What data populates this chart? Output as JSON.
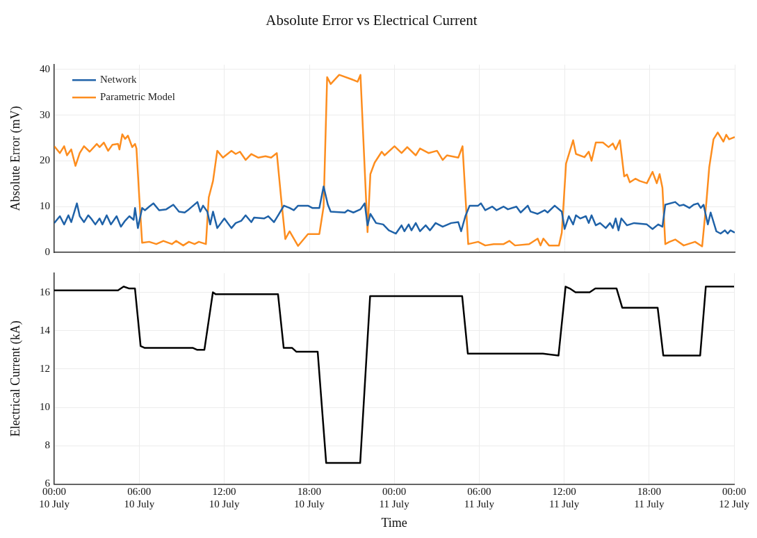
{
  "chart_data": [
    {
      "type": "line",
      "title": "Absolute Error vs Electrical Current",
      "ylabel": "Absolute Error (mV)",
      "xlim": [
        "--07-10T00:00",
        "--07-12T00:00"
      ],
      "xticks": [
        "--07-10T00:00",
        "--07-10T06:00",
        "--07-10T12:00",
        "--07-10T18:00",
        "--07-11T00:00",
        "--07-11T06:00",
        "--07-11T12:00",
        "--07-11T18:00",
        "--07-12T00:00"
      ],
      "ylim": [
        0,
        41
      ],
      "yticks": [
        0,
        10,
        20,
        30,
        40
      ],
      "grid": true,
      "legend": "top left",
      "tick_labels": "y",
      "series": [
        {
          "name": "Network",
          "color": "#1f62a8",
          "x": [
            "--07-10T00:00",
            "--07-10T00:24",
            "--07-10T00:42",
            "--07-10T01:00",
            "--07-10T01:12",
            "--07-10T01:36",
            "--07-10T01:48",
            "--07-10T02:06",
            "--07-10T02:24",
            "--07-10T02:36",
            "--07-10T02:54",
            "--07-10T03:12",
            "--07-10T03:24",
            "--07-10T03:42",
            "--07-10T04:00",
            "--07-10T04:24",
            "--07-10T04:42",
            "--07-10T05:00",
            "--07-10T05:18",
            "--07-10T05:36",
            "--07-10T05:42",
            "--07-10T05:54",
            "--07-10T06:12",
            "--07-10T06:24",
            "--07-10T06:42",
            "--07-10T07:00",
            "--07-10T07:24",
            "--07-10T07:54",
            "--07-10T08:24",
            "--07-10T08:48",
            "--07-10T09:12",
            "--07-10T09:30",
            "--07-10T10:06",
            "--07-10T10:18",
            "--07-10T10:30",
            "--07-10T10:48",
            "--07-10T11:00",
            "--07-10T11:12",
            "--07-10T11:30",
            "--07-10T12:00",
            "--07-10T12:30",
            "--07-10T12:48",
            "--07-10T13:12",
            "--07-10T13:30",
            "--07-10T13:54",
            "--07-10T14:06",
            "--07-10T14:48",
            "--07-10T15:06",
            "--07-10T15:30",
            "--07-10T15:48",
            "--07-10T16:12",
            "--07-10T16:36",
            "--07-10T16:54",
            "--07-10T17:12",
            "--07-10T17:54",
            "--07-10T18:12",
            "--07-10T18:42",
            "--07-10T19:00",
            "--07-10T19:18",
            "--07-10T19:30",
            "--07-10T20:30",
            "--07-10T20:42",
            "--07-10T21:06",
            "--07-10T21:36",
            "--07-10T21:54",
            "--07-10T22:06",
            "--07-10T22:18",
            "--07-10T22:42",
            "--07-10T23:12",
            "--07-10T23:36",
            "--07-11T00:06",
            "--07-11T00:30",
            "--07-11T00:42",
            "--07-11T01:00",
            "--07-11T01:12",
            "--07-11T01:30",
            "--07-11T01:48",
            "--07-11T02:12",
            "--07-11T02:30",
            "--07-11T02:54",
            "--07-11T03:24",
            "--07-11T04:00",
            "--07-11T04:30",
            "--07-11T04:42",
            "--07-11T05:00",
            "--07-11T05:18",
            "--07-11T05:54",
            "--07-11T06:06",
            "--07-11T06:24",
            "--07-11T06:54",
            "--07-11T07:12",
            "--07-11T07:42",
            "--07-11T08:00",
            "--07-11T08:36",
            "--07-11T08:54",
            "--07-11T09:24",
            "--07-11T09:36",
            "--07-11T10:06",
            "--07-11T10:36",
            "--07-11T10:48",
            "--07-11T11:18",
            "--07-11T11:48",
            "--07-11T12:00",
            "--07-11T12:18",
            "--07-11T12:36",
            "--07-11T12:48",
            "--07-11T13:06",
            "--07-11T13:30",
            "--07-11T13:42",
            "--07-11T13:54",
            "--07-11T14:12",
            "--07-11T14:30",
            "--07-11T14:54",
            "--07-11T15:12",
            "--07-11T15:24",
            "--07-11T15:36",
            "--07-11T15:48",
            "--07-11T16:00",
            "--07-11T16:24",
            "--07-11T16:54",
            "--07-11T17:48",
            "--07-11T18:12",
            "--07-11T18:36",
            "--07-11T18:54",
            "--07-11T19:06",
            "--07-11T19:48",
            "--07-11T20:06",
            "--07-11T20:24",
            "--07-11T20:48",
            "--07-11T21:06",
            "--07-11T21:24",
            "--07-11T21:36",
            "--07-11T21:48",
            "--07-11T22:06",
            "--07-11T22:18",
            "--07-11T22:42",
            "--07-11T23:00",
            "--07-11T23:18",
            "--07-11T23:30",
            "--07-11T23:42",
            "--07-12T00:00"
          ],
          "values": [
            6.4,
            7.9,
            6.1,
            8.1,
            6.6,
            10.7,
            7.9,
            6.6,
            8.1,
            7.4,
            6.1,
            7.4,
            6.1,
            8.1,
            6.1,
            7.9,
            5.6,
            6.9,
            7.9,
            7.1,
            9.7,
            5.3,
            9.7,
            9.2,
            10,
            10.7,
            9.2,
            9.4,
            10.4,
            8.9,
            8.7,
            9.4,
            11,
            8.9,
            10.2,
            8.9,
            6.1,
            8.9,
            5.3,
            7.4,
            5.3,
            6.4,
            6.9,
            8.1,
            6.6,
            7.6,
            7.4,
            7.9,
            6.6,
            8.1,
            10.2,
            9.7,
            9.2,
            10.2,
            10.2,
            9.7,
            9.7,
            14.4,
            10.4,
            8.9,
            8.7,
            9.2,
            8.7,
            9.4,
            10.7,
            5.9,
            8.4,
            6.4,
            6.1,
            4.8,
            4.1,
            5.9,
            4.6,
            6.1,
            4.8,
            6.4,
            4.6,
            5.9,
            4.8,
            6.4,
            5.6,
            6.4,
            6.6,
            4.6,
            7.9,
            10.2,
            10.2,
            10.7,
            9.2,
            10,
            9.2,
            10,
            9.4,
            10,
            8.7,
            10.2,
            8.9,
            8.4,
            9.2,
            8.7,
            10.2,
            8.9,
            5.1,
            7.9,
            6.1,
            8.1,
            7.4,
            7.9,
            6.4,
            8.1,
            5.9,
            6.4,
            5.3,
            6.4,
            5.3,
            7.4,
            4.8,
            7.4,
            5.9,
            6.4,
            6.1,
            5.1,
            6.1,
            5.6,
            10.4,
            11,
            10.2,
            10.4,
            9.7,
            10.4,
            10.7,
            9.7,
            10.4,
            6.1,
            8.7,
            4.6,
            4.1,
            4.8,
            4.1,
            4.8,
            4.3
          ]
        },
        {
          "name": "Parametric Model",
          "color": "#fd8d1e",
          "x": [
            "--07-10T00:00",
            "--07-10T00:24",
            "--07-10T00:42",
            "--07-10T00:54",
            "--07-10T01:12",
            "--07-10T01:30",
            "--07-10T01:48",
            "--07-10T02:06",
            "--07-10T02:30",
            "--07-10T03:00",
            "--07-10T03:12",
            "--07-10T03:30",
            "--07-10T03:48",
            "--07-10T04:06",
            "--07-10T04:30",
            "--07-10T04:36",
            "--07-10T04:48",
            "--07-10T05:00",
            "--07-10T05:12",
            "--07-10T05:30",
            "--07-10T05:42",
            "--07-10T05:48",
            "--07-10T06:00",
            "--07-10T06:12",
            "--07-10T06:42",
            "--07-10T07:12",
            "--07-10T07:42",
            "--07-10T08:18",
            "--07-10T08:36",
            "--07-10T09:06",
            "--07-10T09:30",
            "--07-10T09:54",
            "--07-10T10:12",
            "--07-10T10:42",
            "--07-10T10:54",
            "--07-10T11:12",
            "--07-10T11:30",
            "--07-10T11:54",
            "--07-10T12:30",
            "--07-10T12:48",
            "--07-10T13:06",
            "--07-10T13:30",
            "--07-10T13:54",
            "--07-10T14:24",
            "--07-10T14:54",
            "--07-10T15:18",
            "--07-10T15:42",
            "--07-10T16:00",
            "--07-10T16:18",
            "--07-10T16:36",
            "--07-10T17:12",
            "--07-10T17:54",
            "--07-10T18:42",
            "--07-10T19:00",
            "--07-10T19:15",
            "--07-10T19:30",
            "--07-10T20:06",
            "--07-10T21:00",
            "--07-10T21:24",
            "--07-10T21:36",
            "--07-10T22:06",
            "--07-10T22:18",
            "--07-10T22:36",
            "--07-10T23:06",
            "--07-10T23:18",
            "--07-11T00:00",
            "--07-11T00:30",
            "--07-11T00:54",
            "--07-11T01:30",
            "--07-11T01:48",
            "--07-11T02:24",
            "--07-11T03:00",
            "--07-11T03:24",
            "--07-11T03:42",
            "--07-11T04:30",
            "--07-11T04:48",
            "--07-11T05:12",
            "--07-11T05:54",
            "--07-11T06:24",
            "--07-11T07:00",
            "--07-11T07:42",
            "--07-11T08:06",
            "--07-11T08:30",
            "--07-11T09:30",
            "--07-11T10:06",
            "--07-11T10:18",
            "--07-11T10:30",
            "--07-11T10:54",
            "--07-11T11:36",
            "--07-11T11:48",
            "--07-11T12:06",
            "--07-11T12:36",
            "--07-11T12:48",
            "--07-11T13:24",
            "--07-11T13:42",
            "--07-11T13:54",
            "--07-11T14:12",
            "--07-11T14:42",
            "--07-11T15:06",
            "--07-11T15:24",
            "--07-11T15:36",
            "--07-11T15:54",
            "--07-11T16:12",
            "--07-11T16:24",
            "--07-11T16:36",
            "--07-11T17:00",
            "--07-11T17:18",
            "--07-11T17:48",
            "--07-11T18:12",
            "--07-11T18:30",
            "--07-11T18:42",
            "--07-11T18:54",
            "--07-11T19:06",
            "--07-11T19:24",
            "--07-11T19:48",
            "--07-11T20:24",
            "--07-11T21:12",
            "--07-11T21:42",
            "--07-11T22:00",
            "--07-11T22:12",
            "--07-11T22:30",
            "--07-11T22:48",
            "--07-11T23:12",
            "--07-11T23:24",
            "--07-11T23:36",
            "--07-12T00:00"
          ],
          "values": [
            23.2,
            21.7,
            23.2,
            21.2,
            22.5,
            18.9,
            21.7,
            23.2,
            22,
            23.7,
            23,
            24,
            22.2,
            23.5,
            23.7,
            22.5,
            25.8,
            24.8,
            25.5,
            23,
            23.7,
            22.7,
            12,
            2.1,
            2.3,
            1.8,
            2.5,
            1.8,
            2.5,
            1.5,
            2.3,
            1.8,
            2.3,
            1.8,
            12,
            15.6,
            22.2,
            20.7,
            22.2,
            21.5,
            22,
            20.2,
            21.5,
            20.7,
            21,
            20.7,
            21.7,
            12,
            2.9,
            4.6,
            1.4,
            4.0,
            4.0,
            10,
            38.3,
            36.8,
            38.8,
            37.8,
            37.3,
            38.8,
            4.4,
            17.1,
            19.6,
            22,
            21.2,
            23.2,
            21.7,
            23,
            21.2,
            22.7,
            21.7,
            22.2,
            20.2,
            21.2,
            20.7,
            23.2,
            1.8,
            2.3,
            1.5,
            1.8,
            1.8,
            2.5,
            1.5,
            1.8,
            3,
            1.5,
            3,
            1.5,
            1.5,
            4.3,
            19.4,
            24.5,
            21.5,
            20.8,
            22,
            20,
            24,
            24,
            23,
            23.8,
            22.5,
            24.5,
            16.6,
            17,
            15.3,
            16.1,
            15.6,
            15.1,
            17.6,
            15.1,
            17.1,
            14.1,
            1.8,
            2.3,
            2.8,
            1.5,
            2.3,
            1.3,
            11,
            18.6,
            24.7,
            26.2,
            24.2,
            25.7,
            24.7,
            25.2
          ]
        }
      ]
    },
    {
      "type": "line",
      "xlabel": "Time",
      "ylabel": "Electrical Current (kA)",
      "xlim": [
        "--07-10T00:00",
        "--07-12T00:00"
      ],
      "xticks": [
        {
          "value": "--07-10T00:00",
          "label": "00:00\n10 July"
        },
        {
          "value": "--07-10T06:00",
          "label": "06:00\n10 July"
        },
        {
          "value": "--07-10T12:00",
          "label": "12:00\n10 July"
        },
        {
          "value": "--07-10T18:00",
          "label": "18:00\n10 July"
        },
        {
          "value": "--07-11T00:00",
          "label": "00:00\n11 July"
        },
        {
          "value": "--07-11T06:00",
          "label": "06:00\n11 July"
        },
        {
          "value": "--07-11T12:00",
          "label": "12:00\n11 July"
        },
        {
          "value": "--07-11T18:00",
          "label": "18:00\n11 July"
        },
        {
          "value": "--07-12T00:00",
          "label": "00:00\n12 July"
        }
      ],
      "ylim": [
        6,
        17
      ],
      "yticks": [
        6,
        8,
        10,
        12,
        14,
        16
      ],
      "grid": true,
      "series": [
        {
          "color": "#000000",
          "x": [
            "--07-10T00:00",
            "--07-10T04:30",
            "--07-10T04:54",
            "--07-10T05:18",
            "--07-10T05:42",
            "--07-10T06:06",
            "--07-10T06:24",
            "--07-10T09:48",
            "--07-10T10:06",
            "--07-10T10:36",
            "--07-10T11:12",
            "--07-10T11:24",
            "--07-10T15:48",
            "--07-10T16:12",
            "--07-10T16:48",
            "--07-10T17:06",
            "--07-10T18:36",
            "--07-10T19:12",
            "--07-10T21:36",
            "--07-10T22:18",
            "--07-11T04:48",
            "--07-11T05:12",
            "--07-11T10:30",
            "--07-11T11:36",
            "--07-11T12:06",
            "--07-11T12:24",
            "--07-11T12:48",
            "--07-11T13:48",
            "--07-11T14:12",
            "--07-11T15:42",
            "--07-11T16:06",
            "--07-11T18:36",
            "--07-11T19:00",
            "--07-11T21:36",
            "--07-11T22:00",
            "--07-11T22:24",
            "--07-12T00:00"
          ],
          "values": [
            16.1,
            16.1,
            16.3,
            16.2,
            16.2,
            13.2,
            13.1,
            13.1,
            13.0,
            13.0,
            16.0,
            15.9,
            15.9,
            13.1,
            13.1,
            12.9,
            12.9,
            7.1,
            7.1,
            15.8,
            15.8,
            12.8,
            12.8,
            12.7,
            16.3,
            16.2,
            16.0,
            16.0,
            16.2,
            16.2,
            15.2,
            15.2,
            12.7,
            12.7,
            16.3,
            16.3,
            16.3
          ]
        }
      ]
    }
  ]
}
